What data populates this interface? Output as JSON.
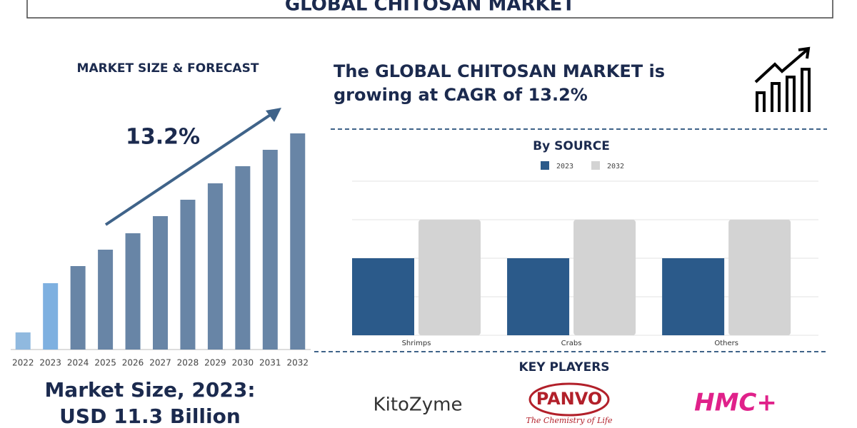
{
  "header": {
    "title": "GLOBAL CHITOSAN MARKET"
  },
  "headline": [
    "The GLOBAL CHITOSAN MARKET is",
    "growing at CAGR of 13.2%"
  ],
  "market_size": [
    "Market Size, 2023:",
    "USD 11.3 Billion"
  ],
  "key_players": {
    "title": "KEY PLAYERS",
    "logos": [
      "KitoZyme",
      "PANVO",
      "The Chemistry of Life",
      "HMC+"
    ]
  },
  "chart_data": [
    {
      "type": "bar",
      "title": "MARKET SIZE & FORECAST",
      "annotation": "13.2%",
      "categories": [
        "2022",
        "2023",
        "2024",
        "2025",
        "2026",
        "2027",
        "2028",
        "2029",
        "2030",
        "2031",
        "2032"
      ],
      "values": [
        24,
        93,
        117,
        140,
        163,
        187,
        210,
        233,
        257,
        280,
        303
      ],
      "colors": [
        "#90b9df",
        "#7eb0e0",
        "#6885a6",
        "#6885a6",
        "#6885a6",
        "#6885a6",
        "#6885a6",
        "#6885a6",
        "#6885a6",
        "#6885a6",
        "#6885a6"
      ],
      "ylim": [
        0,
        310
      ]
    },
    {
      "type": "grouped-bar",
      "title": "By SOURCE",
      "categories": [
        "Shrimps",
        "Crabs",
        "Others"
      ],
      "series": [
        {
          "name": "2023",
          "color": "#2b5a8a",
          "values": [
            2,
            2,
            2
          ]
        },
        {
          "name": "2032",
          "color": "#d3d3d3",
          "values": [
            3,
            3,
            3
          ]
        }
      ],
      "ylim": [
        0,
        4
      ],
      "grid": true,
      "gridlines": [
        0,
        1,
        2,
        3,
        4
      ]
    }
  ]
}
